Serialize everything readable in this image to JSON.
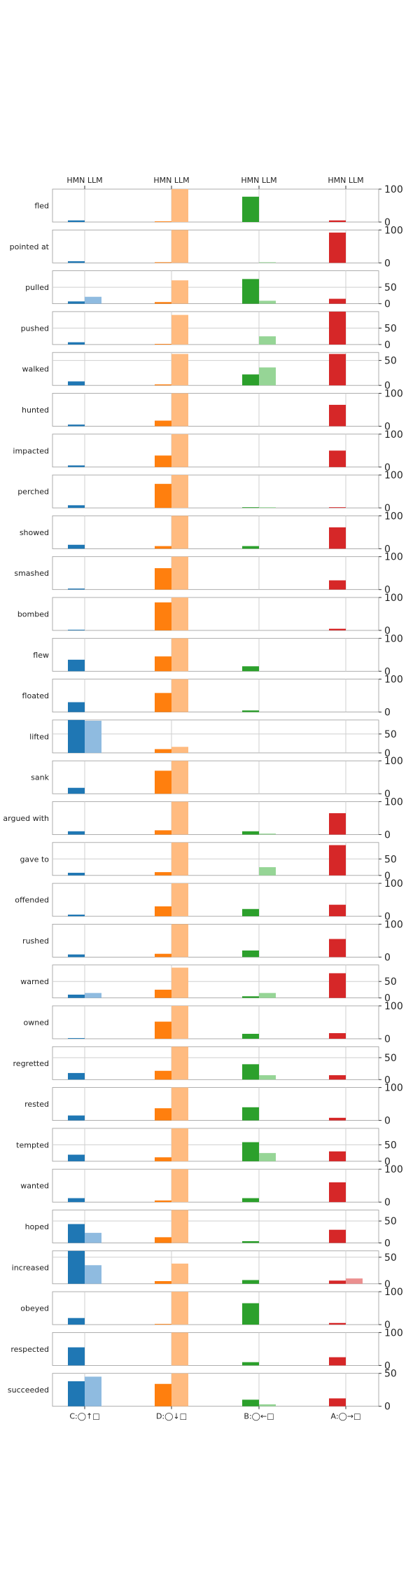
{
  "chart_data": {
    "type": "bar",
    "title": "",
    "xlabel": "",
    "ylabel": "",
    "grid": true,
    "legend": "none",
    "top_tick_label": "HMN LLM",
    "groups": [
      {
        "label": "C:◯↑□",
        "color_hmn": "#1f77b4",
        "color_llm": "#8fbbe0"
      },
      {
        "label": "D:◯↓□",
        "color_hmn": "#ff7f0e",
        "color_llm": "#ffbb80"
      },
      {
        "label": "B:◯←□",
        "color_hmn": "#2ca02c",
        "color_llm": "#96d596"
      },
      {
        "label": "A:◯→□",
        "color_hmn": "#d62728",
        "color_llm": "#eb8f8f"
      }
    ],
    "series": [
      "HMN",
      "LLM"
    ],
    "rows": [
      {
        "label": "fled",
        "ymax": 100,
        "ticks": [
          0,
          100
        ],
        "hmn": [
          5,
          2,
          77,
          5
        ],
        "llm": [
          0,
          100,
          0,
          0
        ]
      },
      {
        "label": "pointed at",
        "ymax": 100,
        "ticks": [
          0,
          100
        ],
        "hmn": [
          5,
          2,
          0,
          92
        ],
        "llm": [
          0,
          100,
          2,
          0
        ]
      },
      {
        "label": "pulled",
        "ymax": 100,
        "ticks": [
          0,
          50
        ],
        "hmn": [
          7,
          5,
          75,
          15
        ],
        "llm": [
          21,
          71,
          9,
          0
        ]
      },
      {
        "label": "pushed",
        "ymax": 100,
        "ticks": [
          0,
          50
        ],
        "hmn": [
          7,
          2,
          0,
          100
        ],
        "llm": [
          0,
          90,
          25,
          0
        ]
      },
      {
        "label": "walked",
        "ymax": 66,
        "ticks": [
          0,
          50
        ],
        "hmn": [
          8,
          2,
          22,
          63
        ],
        "llm": [
          0,
          63,
          36,
          0
        ]
      },
      {
        "label": "hunted",
        "ymax": 100,
        "ticks": [
          0,
          100
        ],
        "hmn": [
          5,
          17,
          0,
          65
        ],
        "llm": [
          0,
          100,
          0,
          0
        ]
      },
      {
        "label": "impacted",
        "ymax": 100,
        "ticks": [
          0,
          100
        ],
        "hmn": [
          5,
          35,
          0,
          50
        ],
        "llm": [
          0,
          100,
          0,
          0
        ]
      },
      {
        "label": "perched",
        "ymax": 100,
        "ticks": [
          0,
          100
        ],
        "hmn": [
          8,
          73,
          2,
          2
        ],
        "llm": [
          0,
          100,
          2,
          0
        ]
      },
      {
        "label": "showed",
        "ymax": 100,
        "ticks": [
          0,
          100
        ],
        "hmn": [
          12,
          8,
          8,
          65
        ],
        "llm": [
          0,
          100,
          0,
          0
        ]
      },
      {
        "label": "smashed",
        "ymax": 100,
        "ticks": [
          0,
          100
        ],
        "hmn": [
          3,
          65,
          0,
          28
        ],
        "llm": [
          0,
          100,
          0,
          0
        ]
      },
      {
        "label": "bombed",
        "ymax": 100,
        "ticks": [
          0,
          100
        ],
        "hmn": [
          2,
          85,
          0,
          5
        ],
        "llm": [
          0,
          100,
          0,
          0
        ]
      },
      {
        "label": "flew",
        "ymax": 100,
        "ticks": [
          0,
          100
        ],
        "hmn": [
          35,
          45,
          15,
          0
        ],
        "llm": [
          0,
          100,
          0,
          0
        ]
      },
      {
        "label": "floated",
        "ymax": 100,
        "ticks": [
          0,
          100
        ],
        "hmn": [
          30,
          58,
          5,
          0
        ],
        "llm": [
          0,
          100,
          0,
          0
        ]
      },
      {
        "label": "lifted",
        "ymax": 87,
        "ticks": [
          0,
          50
        ],
        "hmn": [
          87,
          10,
          0,
          0
        ],
        "llm": [
          85,
          16,
          0,
          0
        ]
      },
      {
        "label": "sank",
        "ymax": 100,
        "ticks": [
          0,
          100
        ],
        "hmn": [
          18,
          70,
          0,
          0
        ],
        "llm": [
          0,
          100,
          0,
          0
        ]
      },
      {
        "label": "argued with",
        "ymax": 100,
        "ticks": [
          0,
          100
        ],
        "hmn": [
          10,
          13,
          10,
          65
        ],
        "llm": [
          0,
          100,
          3,
          0
        ]
      },
      {
        "label": "gave to",
        "ymax": 100,
        "ticks": [
          0,
          50
        ],
        "hmn": [
          8,
          10,
          0,
          92
        ],
        "llm": [
          0,
          100,
          25,
          0
        ]
      },
      {
        "label": "offended",
        "ymax": 100,
        "ticks": [
          0,
          100
        ],
        "hmn": [
          5,
          30,
          22,
          35
        ],
        "llm": [
          0,
          100,
          0,
          0
        ]
      },
      {
        "label": "rushed",
        "ymax": 100,
        "ticks": [
          0,
          100
        ],
        "hmn": [
          8,
          10,
          20,
          55
        ],
        "llm": [
          0,
          100,
          0,
          0
        ]
      },
      {
        "label": "warned",
        "ymax": 100,
        "ticks": [
          0,
          50
        ],
        "hmn": [
          10,
          25,
          5,
          75
        ],
        "llm": [
          15,
          92,
          15,
          0
        ]
      },
      {
        "label": "owned",
        "ymax": 100,
        "ticks": [
          0,
          100
        ],
        "hmn": [
          2,
          52,
          15,
          17
        ],
        "llm": [
          0,
          100,
          0,
          0
        ]
      },
      {
        "label": "regretted",
        "ymax": 75,
        "ticks": [
          0,
          50
        ],
        "hmn": [
          15,
          20,
          35,
          10
        ],
        "llm": [
          0,
          75,
          10,
          0
        ]
      },
      {
        "label": "rested",
        "ymax": 100,
        "ticks": [
          0,
          100
        ],
        "hmn": [
          15,
          37,
          40,
          8
        ],
        "llm": [
          0,
          100,
          0,
          0
        ]
      },
      {
        "label": "tempted",
        "ymax": 100,
        "ticks": [
          0,
          50
        ],
        "hmn": [
          20,
          12,
          58,
          30
        ],
        "llm": [
          0,
          100,
          25,
          0
        ]
      },
      {
        "label": "wanted",
        "ymax": 100,
        "ticks": [
          0,
          100
        ],
        "hmn": [
          12,
          5,
          12,
          60
        ],
        "llm": [
          0,
          100,
          0,
          0
        ]
      },
      {
        "label": "hoped",
        "ymax": 75,
        "ticks": [
          0,
          50
        ],
        "hmn": [
          43,
          13,
          4,
          30
        ],
        "llm": [
          23,
          75,
          0,
          0
        ]
      },
      {
        "label": "increased",
        "ymax": 62,
        "ticks": [
          0,
          50
        ],
        "hmn": [
          62,
          5,
          7,
          6
        ],
        "llm": [
          35,
          38,
          0,
          10
        ]
      },
      {
        "label": "obeyed",
        "ymax": 100,
        "ticks": [
          0,
          100
        ],
        "hmn": [
          20,
          2,
          65,
          5
        ],
        "llm": [
          0,
          100,
          0,
          0
        ]
      },
      {
        "label": "respected",
        "ymax": 100,
        "ticks": [
          0,
          100
        ],
        "hmn": [
          55,
          0,
          10,
          25
        ],
        "llm": [
          0,
          100,
          0,
          0
        ]
      },
      {
        "label": "succeeded",
        "ymax": 50,
        "ticks": [
          0,
          50
        ],
        "hmn": [
          38,
          34,
          10,
          12
        ],
        "llm": [
          45,
          50,
          3,
          0
        ]
      }
    ]
  }
}
